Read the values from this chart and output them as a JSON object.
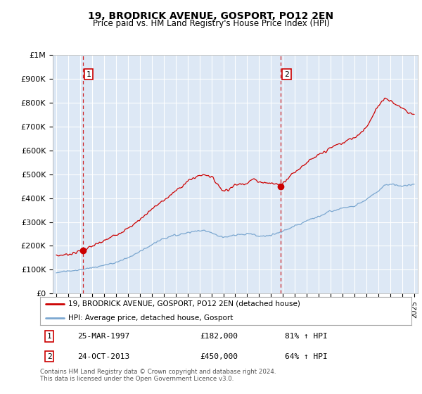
{
  "title": "19, BRODRICK AVENUE, GOSPORT, PO12 2EN",
  "subtitle": "Price paid vs. HM Land Registry's House Price Index (HPI)",
  "legend_line1": "19, BRODRICK AVENUE, GOSPORT, PO12 2EN (detached house)",
  "legend_line2": "HPI: Average price, detached house, Gosport",
  "sale1_label": "1",
  "sale1_date": "25-MAR-1997",
  "sale1_price": 182000,
  "sale1_hpi": "81% ↑ HPI",
  "sale1_year": 1997.22,
  "sale2_label": "2",
  "sale2_date": "24-OCT-2013",
  "sale2_price": 450000,
  "sale2_hpi": "64% ↑ HPI",
  "sale2_year": 2013.81,
  "ylabel_ticks": [
    "£0",
    "£100K",
    "£200K",
    "£300K",
    "£400K",
    "£500K",
    "£600K",
    "£700K",
    "£800K",
    "£900K",
    "£1M"
  ],
  "ytick_vals": [
    0,
    100000,
    200000,
    300000,
    400000,
    500000,
    600000,
    700000,
    800000,
    900000,
    1000000
  ],
  "xlim_min": 1994.7,
  "xlim_max": 2025.3,
  "ylim_min": 0,
  "ylim_max": 1000000,
  "plot_bg": "#dde8f5",
  "red_color": "#cc0000",
  "blue_color": "#7ba7d0",
  "footer": "Contains HM Land Registry data © Crown copyright and database right 2024.\nThis data is licensed under the Open Government Licence v3.0."
}
